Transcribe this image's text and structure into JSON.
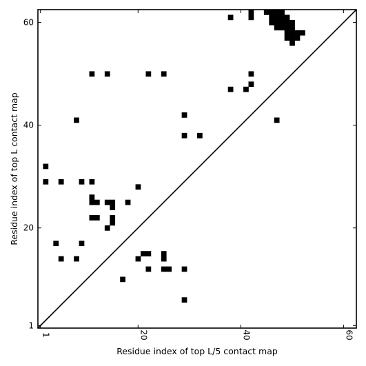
{
  "chart_data": {
    "type": "heatmap",
    "title": "",
    "xlabel": "Residue index of top L/5 contact map",
    "ylabel": "Residue index of top L contact map",
    "xlim": [
      0.5,
      62.5
    ],
    "ylim": [
      0.5,
      62.5
    ],
    "x_ticks": [
      1,
      20,
      40,
      60
    ],
    "y_ticks": [
      1,
      20,
      40,
      60
    ],
    "diagonal": true,
    "cell_color": "#000000",
    "background": "#ffffff",
    "lower_triangle_contacts": [
      [
        2,
        32
      ],
      [
        2,
        29
      ],
      [
        5,
        29
      ],
      [
        9,
        29
      ],
      [
        11,
        29
      ],
      [
        20,
        28
      ],
      [
        11,
        26
      ],
      [
        11,
        25
      ],
      [
        12,
        25
      ],
      [
        14,
        25
      ],
      [
        15,
        25
      ],
      [
        18,
        25
      ],
      [
        15,
        24
      ],
      [
        11,
        22
      ],
      [
        12,
        22
      ],
      [
        15,
        22
      ],
      [
        15,
        21
      ],
      [
        14,
        20
      ],
      [
        4,
        17
      ],
      [
        9,
        17
      ],
      [
        21,
        15
      ],
      [
        22,
        15
      ],
      [
        25,
        15
      ],
      [
        25,
        14
      ],
      [
        5,
        14
      ],
      [
        8,
        14
      ],
      [
        20,
        14
      ],
      [
        22,
        12
      ],
      [
        25,
        12
      ],
      [
        26,
        12
      ],
      [
        29,
        12
      ],
      [
        17,
        10
      ],
      [
        29,
        6
      ]
    ],
    "upper_triangle_contacts": [
      [
        11,
        50
      ],
      [
        14,
        50
      ],
      [
        22,
        50
      ],
      [
        25,
        50
      ],
      [
        8,
        41
      ],
      [
        29,
        42
      ],
      [
        29,
        38
      ],
      [
        32,
        38
      ],
      [
        38,
        61
      ],
      [
        38,
        47
      ],
      [
        41,
        47
      ],
      [
        42,
        62
      ],
      [
        42,
        61
      ],
      [
        42,
        50
      ],
      [
        42,
        48
      ],
      [
        47,
        41
      ],
      [
        45,
        62
      ],
      [
        46,
        62
      ],
      [
        47,
        62
      ],
      [
        48,
        62
      ],
      [
        46,
        61
      ],
      [
        47,
        61
      ],
      [
        48,
        61
      ],
      [
        49,
        61
      ],
      [
        46,
        60
      ],
      [
        47,
        60
      ],
      [
        48,
        60
      ],
      [
        49,
        60
      ],
      [
        50,
        60
      ],
      [
        47,
        59
      ],
      [
        48,
        59
      ],
      [
        49,
        59
      ],
      [
        50,
        59
      ],
      [
        49,
        58
      ],
      [
        50,
        58
      ],
      [
        51,
        58
      ],
      [
        52,
        58
      ],
      [
        49,
        57
      ],
      [
        50,
        57
      ],
      [
        51,
        57
      ],
      [
        50,
        56
      ]
    ]
  }
}
